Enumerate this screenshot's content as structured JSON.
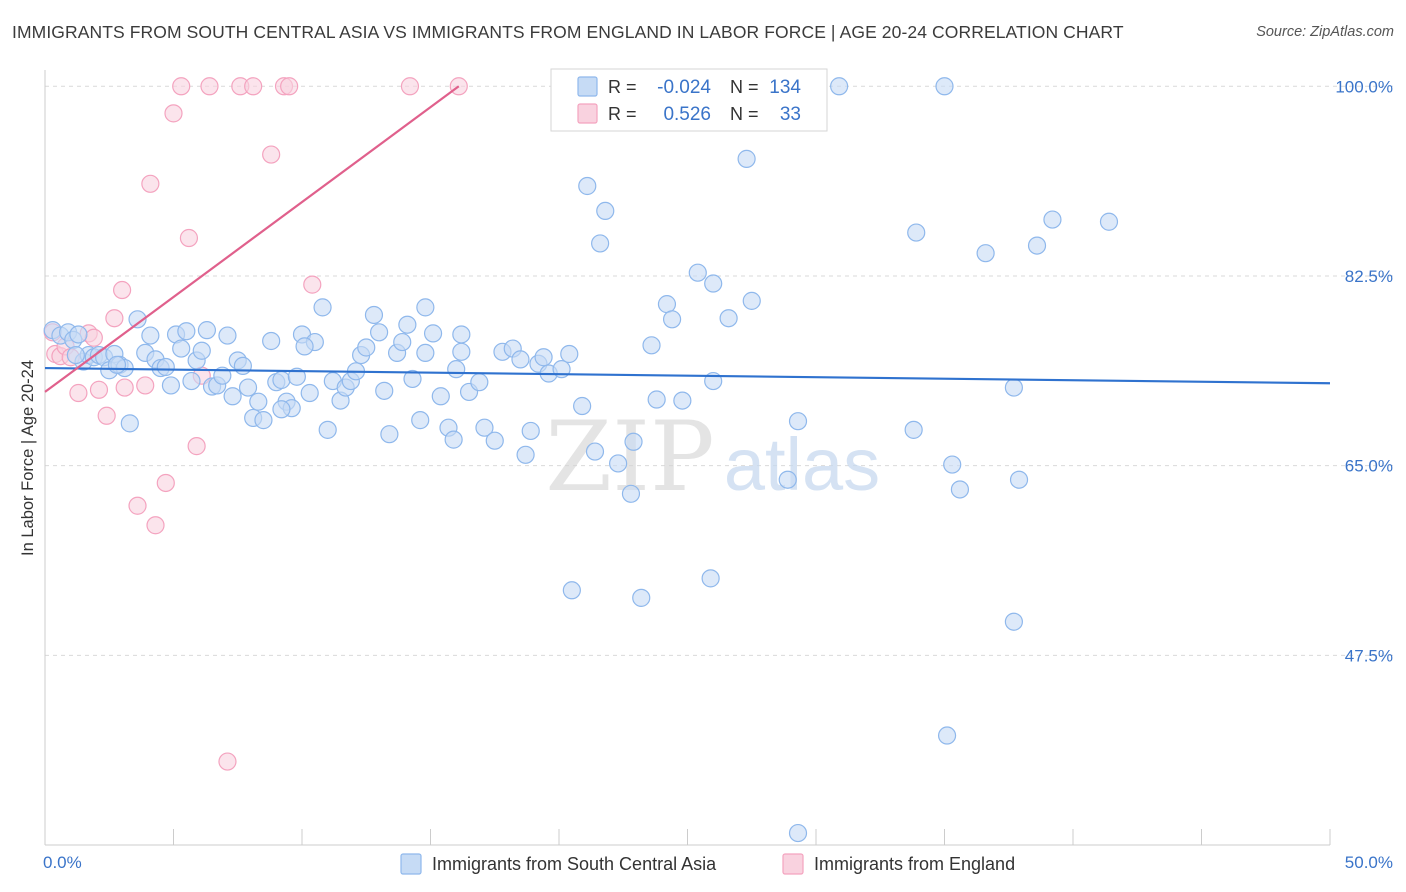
{
  "title": "IMMIGRANTS FROM SOUTH CENTRAL ASIA VS IMMIGRANTS FROM ENGLAND IN LABOR FORCE | AGE 20-24 CORRELATION CHART",
  "source": "Source: ZipAtlas.com",
  "watermark": {
    "zip": "ZIP",
    "atlas": "atlas"
  },
  "stats_legend": {
    "r_label": "R =",
    "n_label": "N =",
    "rows": [
      {
        "r": "-0.024",
        "n": "134",
        "color": "#8fb8ec"
      },
      {
        "r": "0.526",
        "n": "33",
        "color": "#f4a3bf"
      }
    ]
  },
  "chart_data": {
    "type": "scatter",
    "title": "IMMIGRANTS FROM SOUTH CENTRAL ASIA VS IMMIGRANTS FROM ENGLAND IN LABOR FORCE | AGE 20-24 CORRELATION CHART",
    "xlabel": "",
    "ylabel": "In Labor Force | Age 20-24",
    "xlim": [
      0,
      50
    ],
    "ylim": [
      30,
      101.5
    ],
    "x_tick_labels": [
      "0.0%",
      "50.0%"
    ],
    "y_ticks": [
      47.5,
      65.0,
      82.5,
      100.0
    ],
    "y_tick_labels": [
      "47.5%",
      "65.0%",
      "82.5%",
      "100.0%"
    ],
    "grid": true,
    "legend_position": "bottom-center",
    "series": [
      {
        "name": "Immigrants from South Central Asia",
        "fill": "#c6dbf5",
        "stroke": "#8fb8ec",
        "trend_color": "#2f72cf",
        "trend": {
          "x0": 0,
          "y0": 74.0,
          "x1": 50,
          "y1": 72.6
        },
        "points": [
          [
            0.3,
            77.5
          ],
          [
            0.6,
            77.0
          ],
          [
            0.9,
            77.3
          ],
          [
            1.1,
            76.6
          ],
          [
            1.3,
            77.1
          ],
          [
            1.5,
            74.6
          ],
          [
            1.7,
            75.2
          ],
          [
            1.9,
            75.0
          ],
          [
            2.1,
            75.2
          ],
          [
            2.3,
            75.0
          ],
          [
            2.5,
            73.8
          ],
          [
            2.7,
            75.3
          ],
          [
            2.9,
            74.3
          ],
          [
            3.1,
            74.0
          ],
          [
            3.3,
            68.9
          ],
          [
            3.6,
            78.5
          ],
          [
            3.9,
            75.4
          ],
          [
            4.1,
            77.0
          ],
          [
            4.3,
            74.8
          ],
          [
            4.5,
            74.0
          ],
          [
            4.7,
            74.1
          ],
          [
            4.9,
            72.4
          ],
          [
            5.1,
            77.1
          ],
          [
            5.3,
            75.8
          ],
          [
            5.5,
            77.4
          ],
          [
            5.7,
            72.8
          ],
          [
            5.9,
            74.7
          ],
          [
            6.1,
            75.6
          ],
          [
            6.3,
            77.5
          ],
          [
            6.5,
            72.3
          ],
          [
            6.7,
            72.4
          ],
          [
            6.9,
            73.3
          ],
          [
            7.1,
            77.0
          ],
          [
            7.3,
            71.4
          ],
          [
            7.5,
            74.7
          ],
          [
            7.7,
            74.2
          ],
          [
            7.9,
            72.2
          ],
          [
            8.1,
            69.4
          ],
          [
            8.3,
            70.9
          ],
          [
            8.5,
            69.2
          ],
          [
            8.8,
            76.5
          ],
          [
            9.0,
            72.7
          ],
          [
            9.2,
            72.9
          ],
          [
            9.4,
            70.9
          ],
          [
            9.6,
            70.3
          ],
          [
            9.8,
            73.2
          ],
          [
            10.0,
            77.1
          ],
          [
            10.3,
            71.7
          ],
          [
            10.5,
            76.4
          ],
          [
            10.8,
            79.6
          ],
          [
            11.0,
            68.3
          ],
          [
            11.2,
            72.8
          ],
          [
            11.5,
            71.0
          ],
          [
            11.7,
            72.2
          ],
          [
            11.9,
            72.8
          ],
          [
            12.1,
            73.7
          ],
          [
            12.3,
            75.2
          ],
          [
            12.5,
            75.9
          ],
          [
            12.8,
            78.9
          ],
          [
            13.0,
            77.3
          ],
          [
            13.2,
            71.9
          ],
          [
            13.4,
            67.9
          ],
          [
            13.7,
            75.4
          ],
          [
            13.9,
            76.4
          ],
          [
            14.1,
            78.0
          ],
          [
            14.3,
            73.0
          ],
          [
            14.6,
            69.2
          ],
          [
            14.8,
            75.4
          ],
          [
            15.1,
            77.2
          ],
          [
            15.4,
            71.4
          ],
          [
            15.7,
            68.5
          ],
          [
            15.9,
            67.4
          ],
          [
            16.0,
            73.9
          ],
          [
            16.2,
            75.5
          ],
          [
            16.5,
            71.8
          ],
          [
            16.9,
            72.7
          ],
          [
            17.1,
            68.5
          ],
          [
            17.5,
            67.3
          ],
          [
            17.8,
            75.5
          ],
          [
            18.2,
            75.8
          ],
          [
            18.5,
            74.8
          ],
          [
            18.7,
            66.0
          ],
          [
            18.9,
            68.2
          ],
          [
            19.2,
            74.4
          ],
          [
            19.6,
            73.5
          ],
          [
            20.1,
            73.9
          ],
          [
            20.4,
            75.3
          ],
          [
            20.5,
            53.5
          ],
          [
            20.9,
            70.5
          ],
          [
            21.4,
            66.3
          ],
          [
            21.1,
            90.8
          ],
          [
            21.6,
            85.5
          ],
          [
            21.8,
            88.5
          ],
          [
            22.3,
            65.2
          ],
          [
            22.8,
            62.4
          ],
          [
            22.9,
            67.2
          ],
          [
            23.2,
            52.8
          ],
          [
            23.6,
            76.1
          ],
          [
            23.8,
            71.1
          ],
          [
            24.2,
            79.9
          ],
          [
            24.4,
            78.5
          ],
          [
            24.8,
            71.0
          ],
          [
            25.4,
            82.8
          ],
          [
            25.9,
            54.6
          ],
          [
            26.0,
            72.8
          ],
          [
            26.0,
            81.8
          ],
          [
            26.0,
            100.0
          ],
          [
            26.6,
            78.6
          ],
          [
            27.3,
            93.3
          ],
          [
            27.5,
            80.2
          ],
          [
            28.9,
            63.7
          ],
          [
            29.3,
            69.1
          ],
          [
            29.3,
            31.1
          ],
          [
            30.9,
            100.0
          ],
          [
            33.8,
            68.3
          ],
          [
            33.9,
            86.5
          ],
          [
            35.0,
            100.0
          ],
          [
            35.3,
            65.1
          ],
          [
            35.6,
            62.8
          ],
          [
            36.6,
            84.6
          ],
          [
            37.7,
            72.2
          ],
          [
            37.9,
            63.7
          ],
          [
            37.7,
            50.6
          ],
          [
            38.6,
            85.3
          ],
          [
            39.2,
            87.7
          ],
          [
            41.4,
            87.5
          ],
          [
            35.1,
            40.1
          ],
          [
            16.2,
            77.1
          ],
          [
            19.4,
            75.0
          ],
          [
            14.8,
            79.6
          ],
          [
            10.1,
            76.0
          ],
          [
            2.8,
            74.3
          ],
          [
            1.2,
            75.2
          ],
          [
            9.2,
            70.2
          ]
        ]
      },
      {
        "name": "Immigrants from England",
        "fill": "#f9d2df",
        "stroke": "#f4a3bf",
        "trend_color": "#e0608c",
        "trend": {
          "x0": 0,
          "y0": 71.8,
          "x1": 16.1,
          "y1": 100.0
        },
        "points": [
          [
            0.3,
            77.3
          ],
          [
            0.4,
            75.3
          ],
          [
            0.6,
            75.1
          ],
          [
            0.8,
            76.0
          ],
          [
            1.0,
            75.0
          ],
          [
            1.3,
            71.7
          ],
          [
            1.7,
            77.2
          ],
          [
            1.9,
            76.8
          ],
          [
            2.1,
            72.0
          ],
          [
            2.4,
            69.6
          ],
          [
            2.7,
            78.6
          ],
          [
            3.0,
            81.2
          ],
          [
            3.1,
            72.2
          ],
          [
            3.6,
            61.3
          ],
          [
            3.9,
            72.4
          ],
          [
            4.1,
            91.0
          ],
          [
            4.3,
            59.5
          ],
          [
            4.7,
            63.4
          ],
          [
            5.0,
            97.5
          ],
          [
            5.3,
            100.0
          ],
          [
            5.6,
            86.0
          ],
          [
            5.9,
            66.8
          ],
          [
            6.1,
            73.3
          ],
          [
            6.4,
            100.0
          ],
          [
            7.1,
            37.7
          ],
          [
            7.6,
            100.0
          ],
          [
            8.1,
            100.0
          ],
          [
            8.8,
            93.7
          ],
          [
            9.3,
            100.0
          ],
          [
            9.5,
            100.0
          ],
          [
            10.4,
            81.7
          ],
          [
            14.2,
            100.0
          ],
          [
            16.1,
            100.0
          ]
        ]
      }
    ]
  }
}
